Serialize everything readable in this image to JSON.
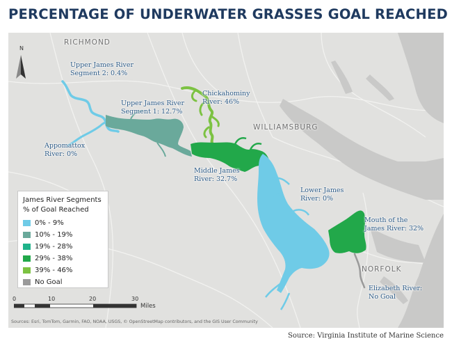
{
  "title": "PERCENTAGE OF UNDERWATER GRASSES GOAL REACHED",
  "legend": {
    "title": "James River Segments",
    "subtitle": "% of Goal Reached",
    "items": [
      {
        "label": "0% - 9%",
        "color": "#6fcbe7"
      },
      {
        "label": "10% - 19%",
        "color": "#6aa99b"
      },
      {
        "label": "19% - 28%",
        "color": "#1fb38a"
      },
      {
        "label": "29% - 38%",
        "color": "#22a84a"
      },
      {
        "label": "39% - 46%",
        "color": "#7cc242"
      },
      {
        "label": "No Goal",
        "color": "#9a9a9a"
      }
    ]
  },
  "segments": [
    {
      "line1": "Upper James River",
      "line2": "Segment 2: 0.4%",
      "percent": 0.4,
      "color": "#6fcbe7"
    },
    {
      "line1": "Upper James River",
      "line2": "Segment 1: 12.7%",
      "percent": 12.7,
      "color": "#6aa99b"
    },
    {
      "line1": "Appomattox",
      "line2": "River: 0%",
      "percent": 0,
      "color": "#6fcbe7"
    },
    {
      "line1": "Chickahominy",
      "line2": "River: 46%",
      "percent": 46,
      "color": "#7cc242"
    },
    {
      "line1": "Middle James",
      "line2": "River: 32.7%",
      "percent": 32.7,
      "color": "#22a84a"
    },
    {
      "line1": "Lower James",
      "line2": "River: 0%",
      "percent": 0,
      "color": "#6fcbe7"
    },
    {
      "line1": "Mouth of the",
      "line2": "James River: 32%",
      "percent": 32,
      "color": "#22a84a"
    },
    {
      "line1": "Elizabeth River:",
      "line2": "No Goal",
      "percent": null,
      "color": "#9a9a9a"
    }
  ],
  "cities": {
    "richmond": "RICHMOND",
    "williamsburg": "WILLIAMSBURG",
    "norfolk": "NORFOLK"
  },
  "north_label": "N",
  "scale": {
    "ticks": [
      "0",
      "10",
      "20",
      "30"
    ],
    "unit": "Miles"
  },
  "sources": "Sources: Esri, TomTom, Garmin, FAO, NOAA, USGS, © OpenStreetMap contributors, and the GIS User Community",
  "credit": "Source: Virginia Institute of Marine Science",
  "colors": {
    "title": "#1f3a5f",
    "label": "#2c5a86",
    "land": "#e1e1df",
    "water": "#c9c9c8"
  }
}
